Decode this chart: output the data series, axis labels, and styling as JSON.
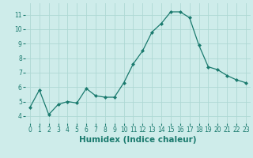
{
  "x": [
    0,
    1,
    2,
    3,
    4,
    5,
    6,
    7,
    8,
    9,
    10,
    11,
    12,
    13,
    14,
    15,
    16,
    17,
    18,
    19,
    20,
    21,
    22,
    23
  ],
  "y": [
    4.6,
    5.8,
    4.1,
    4.8,
    5.0,
    4.9,
    5.9,
    5.4,
    5.3,
    5.3,
    6.3,
    7.6,
    8.5,
    9.8,
    10.4,
    11.2,
    11.2,
    10.8,
    8.9,
    7.4,
    7.2,
    6.8,
    6.5,
    6.3
  ],
  "line_color": "#1a7a6e",
  "marker": "D",
  "marker_size": 2,
  "bg_color": "#ceecea",
  "grid_color": "#aed8d4",
  "xlabel": "Humidex (Indice chaleur)",
  "xlim": [
    -0.5,
    23.5
  ],
  "ylim": [
    3.5,
    11.8
  ],
  "yticks": [
    4,
    5,
    6,
    7,
    8,
    9,
    10,
    11
  ],
  "xticks": [
    0,
    1,
    2,
    3,
    4,
    5,
    6,
    7,
    8,
    9,
    10,
    11,
    12,
    13,
    14,
    15,
    16,
    17,
    18,
    19,
    20,
    21,
    22,
    23
  ],
  "tick_labelsize": 5.5,
  "xlabel_fontsize": 7.5
}
